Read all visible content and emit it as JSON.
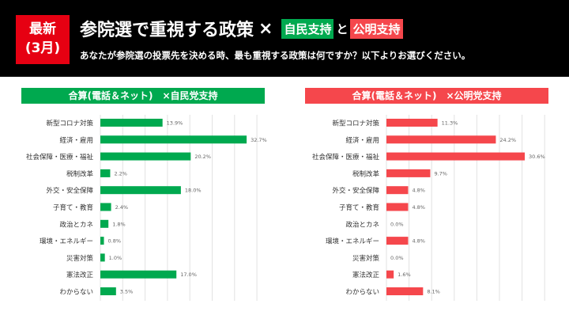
{
  "header": {
    "badge_line1": "最新",
    "badge_line2": "(3月)",
    "title": "参院選で重視する政策",
    "times": "×",
    "tag_ldp": "自民支持",
    "and": "と",
    "tag_komeito": "公明支持",
    "subtitle": "あなたが参院選の投票先を決める時、最も重視する政策は何ですか？以下よりお選びください。"
  },
  "colors": {
    "ldp": "#00a94f",
    "komeito": "#f5474c",
    "badge": "#e60012"
  },
  "chart_data": [
    {
      "type": "bar",
      "orientation": "horizontal",
      "title": "合算(電話＆ネット)　×自民党支持",
      "xlim": [
        0,
        35
      ],
      "grid": true,
      "categories": [
        "新型コロナ対策",
        "経済・雇用",
        "社会保障・医療・福祉",
        "税制改革",
        "外交・安全保障",
        "子育て・教育",
        "政治とカネ",
        "環境・エネルギー",
        "災害対策",
        "憲法改正",
        "わからない"
      ],
      "values": [
        13.9,
        32.7,
        20.2,
        2.2,
        18.0,
        2.4,
        1.8,
        0.8,
        1.0,
        17.0,
        3.5
      ],
      "labels": [
        "13.9%",
        "32.7%",
        "20.2%",
        "2.2%",
        "18.0%",
        "2.4%",
        "1.8%",
        "0.8%",
        "1.0%",
        "17.0%",
        "3.5%"
      ],
      "color": "#00a94f"
    },
    {
      "type": "bar",
      "orientation": "horizontal",
      "title": "合算(電話＆ネット)　×公明党支持",
      "xlim": [
        0,
        35
      ],
      "grid": true,
      "categories": [
        "新型コロナ対策",
        "経済・雇用",
        "社会保障・医療・福祉",
        "税制改革",
        "外交・安全保障",
        "子育て・教育",
        "政治とカネ",
        "環境・エネルギー",
        "災害対策",
        "憲法改正",
        "わからない"
      ],
      "values": [
        11.3,
        24.2,
        30.6,
        9.7,
        4.8,
        4.8,
        0.0,
        4.8,
        0.0,
        1.6,
        8.1
      ],
      "labels": [
        "11.3%",
        "24.2%",
        "30.6%",
        "9.7%",
        "4.8%",
        "4.8%",
        "0.0%",
        "4.8%",
        "0.0%",
        "1.6%",
        "8.1%"
      ],
      "color": "#f5474c"
    }
  ]
}
